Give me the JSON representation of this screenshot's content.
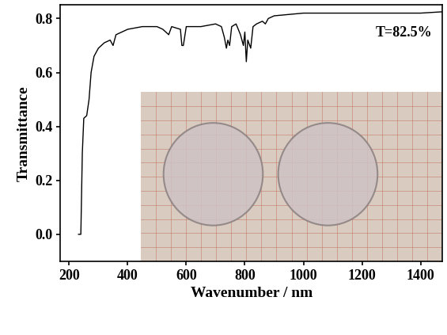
{
  "chart_data": {
    "type": "line",
    "x_label": "Wavenumber / nm",
    "y_label": "Transmittance",
    "annotation": "T=82.5%",
    "color": "#000000",
    "x": [
      232,
      240,
      245,
      250,
      260,
      268,
      275,
      285,
      300,
      320,
      340,
      350,
      360,
      380,
      400,
      450,
      500,
      520,
      540,
      550,
      580,
      585,
      590,
      600,
      650,
      700,
      720,
      730,
      737,
      742,
      748,
      755,
      770,
      785,
      795,
      800,
      805,
      810,
      820,
      828,
      840,
      860,
      870,
      880,
      900,
      1000,
      1200,
      1400,
      1475
    ],
    "values": [
      0.0,
      0.0,
      0.3,
      0.43,
      0.44,
      0.5,
      0.6,
      0.66,
      0.69,
      0.71,
      0.72,
      0.7,
      0.74,
      0.75,
      0.76,
      0.77,
      0.77,
      0.76,
      0.74,
      0.77,
      0.76,
      0.7,
      0.7,
      0.77,
      0.77,
      0.78,
      0.77,
      0.73,
      0.69,
      0.72,
      0.7,
      0.77,
      0.78,
      0.74,
      0.7,
      0.75,
      0.64,
      0.72,
      0.69,
      0.77,
      0.78,
      0.79,
      0.78,
      0.8,
      0.81,
      0.82,
      0.82,
      0.82,
      0.825
    ],
    "xlim": [
      170,
      1475
    ],
    "xticks": [
      200,
      400,
      600,
      800,
      1000,
      1200,
      1400
    ],
    "ylim": [
      -0.1,
      0.85
    ],
    "yticks": [
      {
        "value": 0.0,
        "label": "0.0"
      },
      {
        "value": 0.2,
        "label": "0.2"
      },
      {
        "value": 0.4,
        "label": "0.4"
      },
      {
        "value": 0.6,
        "label": "0.6"
      },
      {
        "value": 0.8,
        "label": "0.8"
      }
    ],
    "grid": false
  }
}
